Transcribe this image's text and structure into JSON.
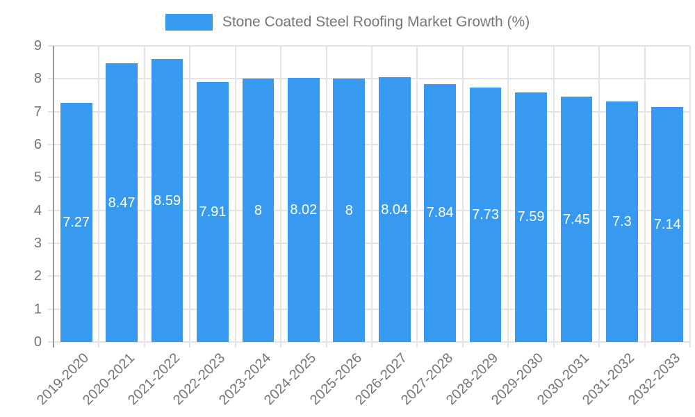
{
  "chart_data": {
    "type": "bar",
    "title": "Stone Coated Steel Roofing Market Growth (%)",
    "legend_entries": [
      "Stone Coated Steel Roofing Market Growth (%)"
    ],
    "legend_position": "top",
    "categories": [
      "2019-2020",
      "2020-2021",
      "2021-2022",
      "2022-2023",
      "2023-2024",
      "2024-2025",
      "2025-2026",
      "2026-2027",
      "2027-2028",
      "2028-2029",
      "2029-2030",
      "2030-2031",
      "2031-2032",
      "2032-2033"
    ],
    "values": [
      7.27,
      8.47,
      8.59,
      7.91,
      8,
      8.02,
      8,
      8.04,
      7.84,
      7.73,
      7.59,
      7.45,
      7.3,
      7.14
    ],
    "value_labels": [
      "7.27",
      "8.47",
      "8.59",
      "7.91",
      "8",
      "8.02",
      "8",
      "8.04",
      "7.84",
      "7.73",
      "7.59",
      "7.45",
      "7.3",
      "7.14"
    ],
    "xlabel": "",
    "ylabel": "",
    "ylim": [
      0,
      9
    ],
    "ytick_step": 1,
    "ytick_labels": [
      "0",
      "1",
      "2",
      "3",
      "4",
      "5",
      "6",
      "7",
      "8",
      "9"
    ],
    "grid": true,
    "x_label_rotation": -45,
    "colors": {
      "bar": "#3899F0",
      "grid": "#e3e3e3",
      "axis": "#999999",
      "tick_text": "#757575",
      "value_text": "#ffffff",
      "background": "#ffffff"
    }
  }
}
